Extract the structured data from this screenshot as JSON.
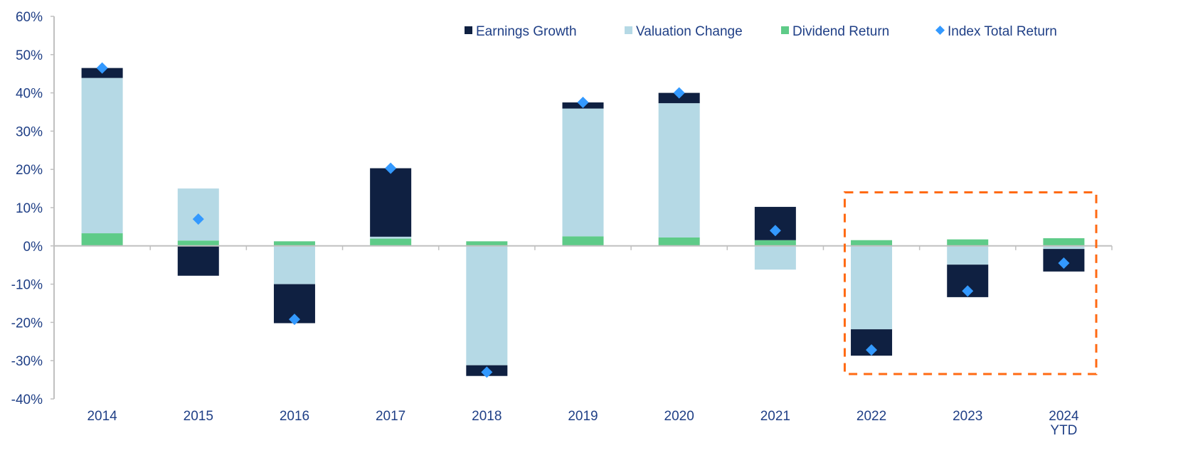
{
  "chart_data": {
    "type": "bar",
    "stacked": true,
    "title": "",
    "xlabel": "",
    "ylabel": "",
    "ylim": [
      -40,
      60
    ],
    "yticks": [
      60,
      50,
      40,
      30,
      20,
      10,
      0,
      -10,
      -20,
      -30,
      -40
    ],
    "ytick_labels": [
      "60%",
      "50%",
      "40%",
      "30%",
      "20%",
      "10%",
      "0%",
      "-10%",
      "-20%",
      "-30%",
      "-40%"
    ],
    "categories": [
      "2014",
      "2015",
      "2016",
      "2017",
      "2018",
      "2019",
      "2020",
      "2021",
      "2022",
      "2023",
      "2024"
    ],
    "category_sublabels": [
      "",
      "",
      "",
      "",
      "",
      "",
      "",
      "",
      "",
      "",
      "YTD"
    ],
    "legend_position": "top-right",
    "series": [
      {
        "name": "Dividend Return",
        "color": "#5ecb88",
        "values": [
          3.3,
          1.4,
          1.2,
          1.9,
          1.2,
          2.5,
          2.2,
          1.5,
          1.5,
          1.7,
          2.0
        ]
      },
      {
        "name": "Valuation Change",
        "color": "#b5d9e5",
        "values": [
          40.6,
          13.6,
          -10.0,
          0.5,
          -31.2,
          33.4,
          35.1,
          -6.2,
          -21.8,
          -4.9,
          -0.8
        ]
      },
      {
        "name": "Earnings Growth",
        "color": "#0f2041",
        "values": [
          2.6,
          -7.8,
          -10.2,
          17.9,
          -2.8,
          1.6,
          2.7,
          8.7,
          -6.9,
          -8.5,
          -5.9
        ]
      }
    ],
    "line_series": {
      "name": "Index Total Return",
      "color": "#3399ff",
      "marker": "diamond",
      "values": [
        46.5,
        7.0,
        -19.2,
        20.3,
        -33.0,
        37.5,
        40.0,
        4.0,
        -27.2,
        -11.8,
        -4.5
      ]
    },
    "legend_order": [
      "Earnings Growth",
      "Valuation Change",
      "Dividend Return",
      "Index Total Return"
    ],
    "annotations": [
      {
        "type": "dashed-box",
        "color": "#ff6a13",
        "from_category": "2022",
        "to_category": "2024",
        "y_range": [
          -33.5,
          14
        ]
      }
    ]
  }
}
